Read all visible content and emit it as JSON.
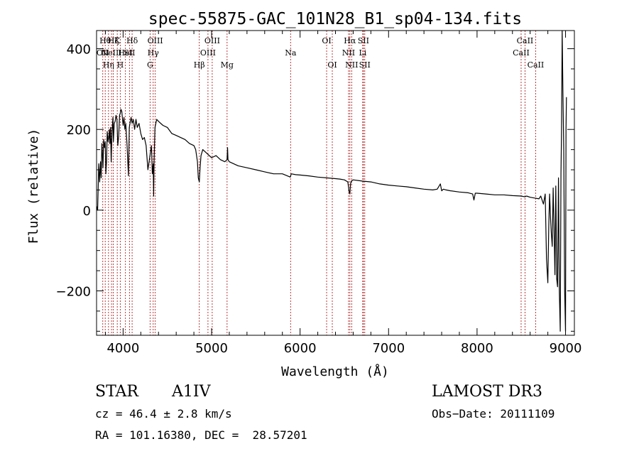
{
  "chart_data": {
    "type": "line",
    "title": "spec-55875-GAC_101N28_B1_sp04-134.fits",
    "xlabel": "Wavelength (Å)",
    "ylabel": "Flux (relative)",
    "xlim": [
      3700,
      9100
    ],
    "ylim": [
      -310,
      445
    ],
    "xticks": [
      4000,
      5000,
      6000,
      7000,
      8000,
      9000
    ],
    "yticks": [
      -200,
      0,
      200,
      400
    ],
    "x_minor_step": 200,
    "y_minor_step": 50,
    "tick_labels_x": [
      "4000",
      "5000",
      "6000",
      "7000",
      "8000",
      "9000"
    ],
    "tick_labels_y": [
      "−200",
      "0",
      "200",
      "400"
    ],
    "series": [
      {
        "name": "flux",
        "color": "#000000",
        "x": [
          3700,
          3712,
          3725,
          3735,
          3745,
          3752,
          3760,
          3768,
          3772,
          3780,
          3790,
          3798,
          3805,
          3812,
          3820,
          3830,
          3838,
          3845,
          3850,
          3858,
          3865,
          3875,
          3885,
          3890,
          3900,
          3910,
          3920,
          3930,
          3940,
          3950,
          3960,
          3968,
          3975,
          3985,
          4000,
          4010,
          4020,
          4030,
          4045,
          4060,
          4070,
          4090,
          4102,
          4115,
          4130,
          4145,
          4160,
          4180,
          4200,
          4220,
          4240,
          4260,
          4280,
          4300,
          4320,
          4330,
          4340,
          4345,
          4350,
          4360,
          4380,
          4400,
          4450,
          4500,
          4550,
          4600,
          4650,
          4700,
          4750,
          4800,
          4820,
          4840,
          4850,
          4861,
          4870,
          4880,
          4900,
          4950,
          5000,
          5050,
          5100,
          5150,
          5175,
          5180,
          5185,
          5200,
          5300,
          5400,
          5500,
          5600,
          5700,
          5800,
          5890,
          5900,
          5950,
          6000,
          6100,
          6200,
          6300,
          6400,
          6450,
          6500,
          6540,
          6555,
          6563,
          6570,
          6580,
          6600,
          6700,
          6800,
          6900,
          7000,
          7100,
          7200,
          7300,
          7400,
          7500,
          7550,
          7585,
          7600,
          7620,
          7650,
          7700,
          7800,
          7900,
          7950,
          7965,
          7980,
          8000,
          8100,
          8200,
          8300,
          8400,
          8500,
          8540,
          8560,
          8600,
          8650,
          8700,
          8720,
          8750,
          8770,
          8785,
          8800,
          8810,
          8820,
          8830,
          8840,
          8850,
          8860,
          8870,
          8880,
          8890,
          8900,
          8910,
          8920,
          8930,
          8940,
          8948,
          8955,
          8962,
          8970,
          8980,
          8990,
          9000,
          9005,
          9010
        ],
        "y": [
          10,
          0,
          115,
          70,
          120,
          80,
          165,
          130,
          105,
          175,
          155,
          170,
          90,
          120,
          195,
          170,
          180,
          200,
          165,
          205,
          120,
          195,
          230,
          170,
          215,
          220,
          235,
          225,
          160,
          185,
          235,
          240,
          250,
          245,
          210,
          230,
          200,
          215,
          160,
          85,
          205,
          230,
          215,
          225,
          200,
          225,
          205,
          215,
          190,
          175,
          180,
          160,
          100,
          130,
          160,
          90,
          115,
          35,
          120,
          205,
          225,
          220,
          210,
          205,
          190,
          185,
          180,
          175,
          165,
          160,
          150,
          120,
          80,
          70,
          105,
          135,
          150,
          140,
          130,
          135,
          125,
          120,
          125,
          155,
          125,
          120,
          110,
          105,
          100,
          95,
          90,
          90,
          82,
          90,
          88,
          87,
          85,
          82,
          80,
          78,
          77,
          75,
          70,
          45,
          40,
          65,
          72,
          75,
          72,
          70,
          65,
          62,
          60,
          58,
          55,
          52,
          50,
          52,
          65,
          48,
          52,
          50,
          48,
          45,
          43,
          40,
          25,
          42,
          42,
          40,
          38,
          38,
          36,
          35,
          33,
          35,
          32,
          30,
          28,
          35,
          15,
          40,
          -120,
          -180,
          -40,
          40,
          -20,
          -60,
          -90,
          55,
          -40,
          -160,
          60,
          -170,
          -190,
          80,
          -200,
          -300,
          90,
          200,
          445,
          300,
          150,
          -200,
          -300,
          200,
          280
        ]
      }
    ],
    "line_markers": [
      {
        "wavelength": 3770,
        "label": "OII",
        "row": 2
      },
      {
        "wavelength": 3798,
        "label": "Hθ",
        "row": 1
      },
      {
        "wavelength": 3835,
        "label": "Hη",
        "row": 3
      },
      {
        "wavelength": 3869,
        "label": "NeIII",
        "row": 2
      },
      {
        "wavelength": 3889,
        "label": "Hζ",
        "row": 1
      },
      {
        "wavelength": 3934,
        "label": "K",
        "row": 1
      },
      {
        "wavelength": 3968,
        "label": "H",
        "row": 3
      },
      {
        "wavelength": 4026,
        "label": "HeI",
        "row": 2
      },
      {
        "wavelength": 4072,
        "label": "SII",
        "row": 2
      },
      {
        "wavelength": 4102,
        "label": "Hδ",
        "row": 1
      },
      {
        "wavelength": 4305,
        "label": "G",
        "row": 3
      },
      {
        "wavelength": 4340,
        "label": "Hγ",
        "row": 2
      },
      {
        "wavelength": 4363,
        "label": "OIII",
        "row": 1
      },
      {
        "wavelength": 4861,
        "label": "Hβ",
        "row": 3
      },
      {
        "wavelength": 4959,
        "label": "OIII",
        "row": 2
      },
      {
        "wavelength": 5007,
        "label": "OIII",
        "row": 1
      },
      {
        "wavelength": 5175,
        "label": "Mg",
        "row": 3
      },
      {
        "wavelength": 5893,
        "label": "Na",
        "row": 2
      },
      {
        "wavelength": 6300,
        "label": "OI",
        "row": 1
      },
      {
        "wavelength": 6364,
        "label": "OI",
        "row": 3
      },
      {
        "wavelength": 6548,
        "label": "NII",
        "row": 2
      },
      {
        "wavelength": 6563,
        "label": "Hα",
        "row": 1
      },
      {
        "wavelength": 6583,
        "label": "NII",
        "row": 3
      },
      {
        "wavelength": 6708,
        "label": "Li",
        "row": 2
      },
      {
        "wavelength": 6716,
        "label": "SII",
        "row": 1
      },
      {
        "wavelength": 6731,
        "label": "SII",
        "row": 3
      },
      {
        "wavelength": 8498,
        "label": "CaII",
        "row": 2
      },
      {
        "wavelength": 8542,
        "label": "CaII",
        "row": 1
      },
      {
        "wavelength": 8662,
        "label": "CaII",
        "row": 3
      }
    ]
  },
  "info": {
    "class": "STAR",
    "subclass": "A1IV",
    "survey": "LAMOST DR3",
    "cz": "cz = 46.4 ± 2.8 km/s",
    "obs_date": "Obs−Date: 20111109",
    "coords": "RA = 101.16380, DEC =  28.57201"
  },
  "colors": {
    "marker": "#b22222",
    "axis": "#000000",
    "spectrum": "#000000"
  }
}
